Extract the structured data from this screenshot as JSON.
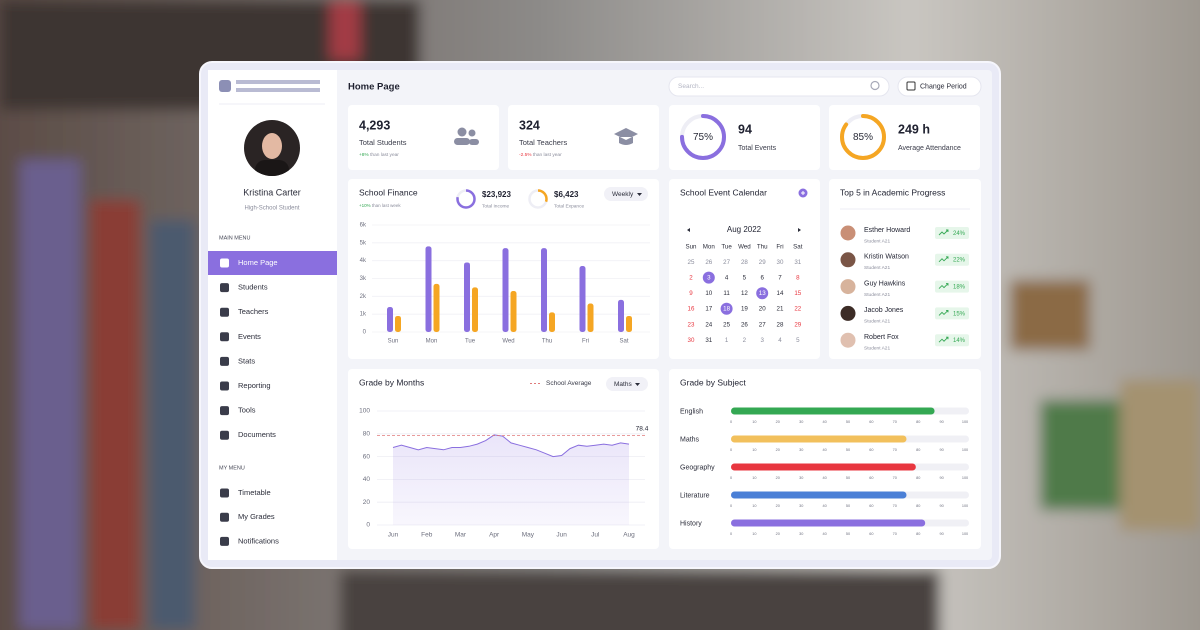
{
  "sidebar": {
    "user": {
      "name": "Kristina Carter",
      "role": "High-School Student"
    },
    "main_menu": {
      "title": "MAIN MENU",
      "items": [
        "Home Page",
        "Students",
        "Teachers",
        "Events",
        "Stats",
        "Reporting",
        "Tools",
        "Documents"
      ],
      "active": "Home Page"
    },
    "my_menu": {
      "title": "MY MENU",
      "items": [
        "Timetable",
        "My Grades",
        "Notifications"
      ]
    }
  },
  "header": {
    "title": "Home Page",
    "search_placeholder": "Search...",
    "button": "Change Period"
  },
  "stats": [
    {
      "value": "4,293",
      "label": "Total Students",
      "change": "+8%",
      "note": "than last year"
    },
    {
      "value": "324",
      "label": "Total Teachers",
      "change": "-2.5%",
      "note": "than last year"
    },
    {
      "ring": 75,
      "ring_label": "75%",
      "value": "94",
      "label": "Total Events",
      "color": "#8a6fdf"
    },
    {
      "ring": 85,
      "ring_label": "85%",
      "value": "249 h",
      "label": "Average Attendance",
      "color": "#f5a623"
    }
  ],
  "finance": {
    "title": "School Finance",
    "change": "+10%",
    "note": "than last week",
    "income": {
      "value": "$23,923",
      "label": "Total Income"
    },
    "expense": {
      "value": "$6,423",
      "label": "Total Expance"
    },
    "period": "Weekly",
    "chart": {
      "type": "bar",
      "categories": [
        "Sun",
        "Mon",
        "Tue",
        "Wed",
        "Thu",
        "Fri",
        "Sat"
      ],
      "series": [
        {
          "color": "#8a6fdf",
          "values": [
            1400,
            4800,
            3900,
            4700,
            4700,
            3700,
            1800
          ]
        },
        {
          "color": "#f5a623",
          "values": [
            900,
            2700,
            2500,
            2300,
            1100,
            1600,
            900
          ]
        }
      ],
      "ylim": [
        0,
        6000
      ],
      "yticks": [
        0,
        {
          "value": 1000,
          "label": "1k"
        },
        {
          "value": 2000,
          "label": "2k"
        },
        {
          "value": 3000,
          "label": "3k"
        },
        {
          "value": 4000,
          "label": "4k"
        },
        {
          "value": 5000,
          "label": "5k"
        },
        {
          "value": 6000,
          "label": "6k"
        }
      ],
      "grid": true
    }
  },
  "calendar": {
    "title": "School Event Calendar",
    "month": "Aug 2022",
    "weekdays": [
      "Sun",
      "Mon",
      "Tue",
      "Wed",
      "Thu",
      "Fri",
      "Sat"
    ],
    "weeks": [
      [
        25,
        26,
        27,
        28,
        29,
        30,
        31
      ],
      [
        2,
        3,
        4,
        5,
        6,
        7,
        8
      ],
      [
        9,
        10,
        11,
        12,
        13,
        14,
        15
      ],
      [
        16,
        17,
        18,
        19,
        20,
        21,
        22
      ],
      [
        23,
        24,
        25,
        26,
        27,
        28,
        29
      ],
      [
        30,
        31,
        1,
        2,
        3,
        4,
        5
      ]
    ],
    "event_days": [
      3,
      13,
      18
    ]
  },
  "top": {
    "title": "Top 5 in Academic Progress",
    "students": [
      {
        "name": "Esther Howard",
        "class": "Student A21",
        "progress": "24%"
      },
      {
        "name": "Kristin Watson",
        "class": "Student A21",
        "progress": "22%"
      },
      {
        "name": "Guy Hawkins",
        "class": "Student A21",
        "progress": "18%"
      },
      {
        "name": "Jacob Jones",
        "class": "Student A21",
        "progress": "15%"
      },
      {
        "name": "Robert Fox",
        "class": "Student A21",
        "progress": "14%"
      }
    ]
  },
  "grade_months": {
    "title": "Grade by Months",
    "subject": "Maths",
    "chart": {
      "type": "area",
      "color": "#8a6fdf",
      "categories": [
        "Jun",
        null,
        null,
        null,
        "Feb",
        null,
        null,
        null,
        "Mar",
        null,
        null,
        null,
        "Apr",
        null,
        null,
        null,
        "May",
        null,
        null,
        null,
        "Jun",
        null,
        null,
        null,
        "Jul",
        null,
        null,
        null,
        "Aug"
      ],
      "values": [
        68,
        70,
        68,
        66,
        68,
        67,
        66,
        68,
        68,
        69,
        71,
        74,
        79,
        78,
        72,
        70,
        68,
        66,
        63,
        60,
        61,
        67,
        70,
        69,
        70,
        71,
        70,
        72,
        71
      ],
      "ylim": [
        0,
        100
      ],
      "yticks": [
        0,
        20,
        40,
        60,
        80,
        100
      ],
      "grid": true,
      "reference": {
        "name": "School Average",
        "value": 78.4,
        "color": "#e07a7a"
      }
    }
  },
  "grade_subject": {
    "title": "Grade by Subject",
    "chart": {
      "type": "hbar",
      "categories": [
        "English",
        "Maths",
        "Geography",
        "Literature",
        "History"
      ],
      "values": [
        87,
        75,
        79,
        75,
        83
      ],
      "colors": [
        "#34a853",
        "#f2c05c",
        "#e8363f",
        "#4a7fd6",
        "#8a6fdf"
      ],
      "xlim": [
        0,
        100
      ],
      "xticks": [
        0,
        10,
        20,
        30,
        40,
        50,
        60,
        70,
        80,
        90,
        100
      ]
    }
  }
}
